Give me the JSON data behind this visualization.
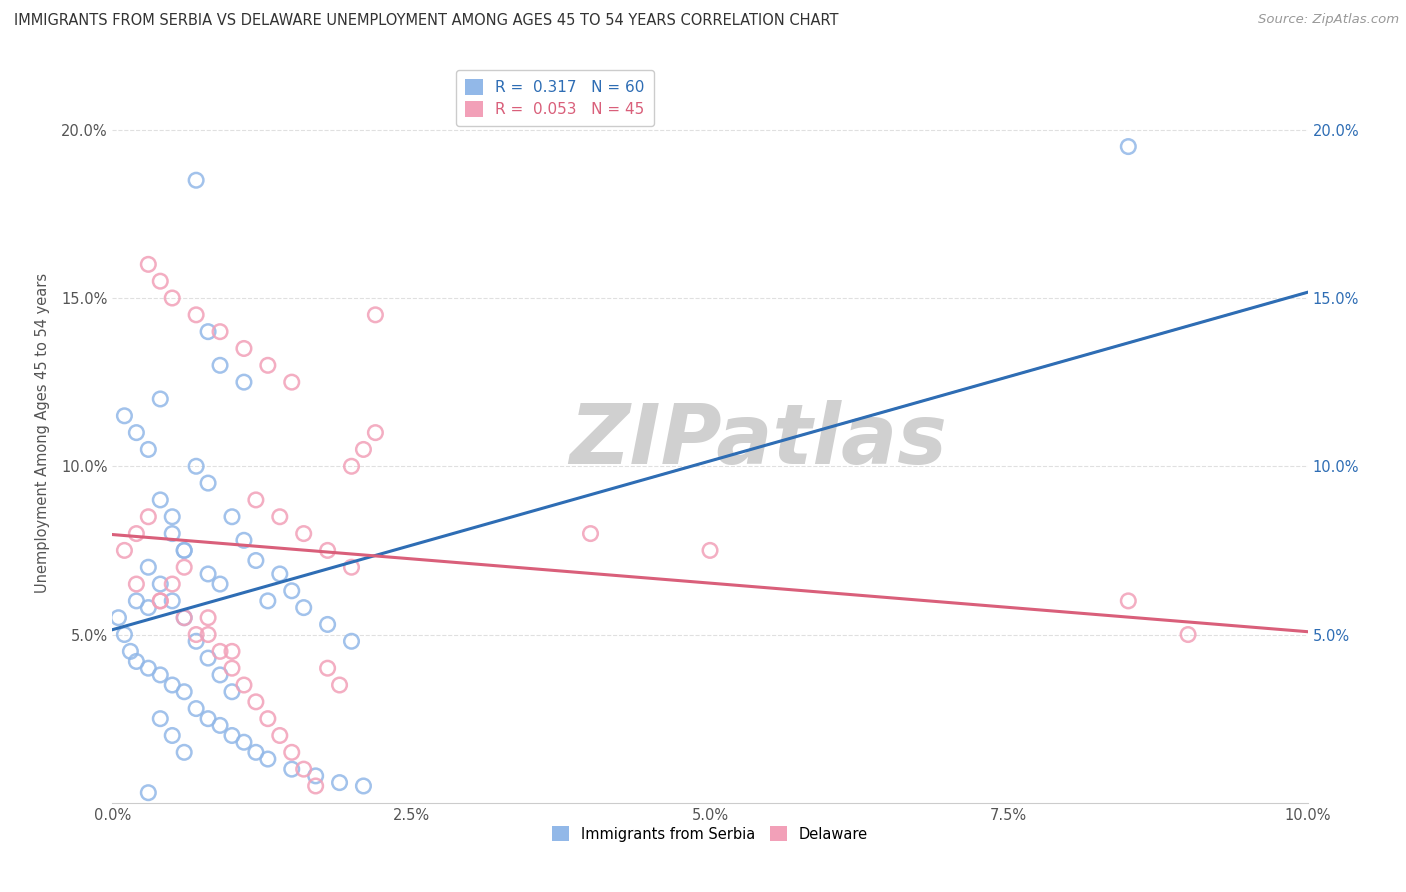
{
  "title": "IMMIGRANTS FROM SERBIA VS DELAWARE UNEMPLOYMENT AMONG AGES 45 TO 54 YEARS CORRELATION CHART",
  "source": "Source: ZipAtlas.com",
  "ylabel": "Unemployment Among Ages 45 to 54 years",
  "xlim": [
    0.0,
    0.1
  ],
  "ylim": [
    0.0,
    0.22
  ],
  "xtick_labels": [
    "0.0%",
    "2.5%",
    "5.0%",
    "7.5%",
    "10.0%"
  ],
  "xtick_vals": [
    0.0,
    0.025,
    0.05,
    0.075,
    0.1
  ],
  "ytick_labels": [
    "",
    "5.0%",
    "10.0%",
    "15.0%",
    "20.0%"
  ],
  "ytick_vals": [
    0.0,
    0.05,
    0.1,
    0.15,
    0.2
  ],
  "r1_val": "0.317",
  "r1_n": "60",
  "r2_val": "0.053",
  "r2_n": "45",
  "blue_scatter_color": "#92b8e8",
  "pink_scatter_color": "#f2a0b8",
  "blue_line_color": "#2e6db4",
  "pink_line_color": "#d95f7a",
  "dash_line_color": "#bbbbbb",
  "watermark_color": "#d0d0d0",
  "grid_color": "#e0e0e0",
  "title_color": "#333333",
  "source_color": "#999999",
  "right_axis_color": "#2e6db4",
  "legend_label1": "Immigrants from Serbia",
  "legend_label2": "Delaware",
  "serbia_x": [
    0.0005,
    0.001,
    0.0015,
    0.002,
    0.002,
    0.003,
    0.003,
    0.003,
    0.004,
    0.004,
    0.004,
    0.005,
    0.005,
    0.005,
    0.006,
    0.006,
    0.006,
    0.007,
    0.007,
    0.008,
    0.008,
    0.008,
    0.009,
    0.009,
    0.01,
    0.01,
    0.011,
    0.011,
    0.012,
    0.012,
    0.013,
    0.014,
    0.015,
    0.015,
    0.016,
    0.017,
    0.018,
    0.019,
    0.02,
    0.021,
    0.001,
    0.002,
    0.003,
    0.004,
    0.005,
    0.006,
    0.007,
    0.008,
    0.009,
    0.01,
    0.003,
    0.004,
    0.005,
    0.006,
    0.007,
    0.008,
    0.009,
    0.011,
    0.013,
    0.085
  ],
  "serbia_y": [
    0.055,
    0.05,
    0.045,
    0.042,
    0.06,
    0.04,
    0.058,
    0.07,
    0.038,
    0.065,
    0.09,
    0.035,
    0.06,
    0.085,
    0.033,
    0.055,
    0.075,
    0.028,
    0.1,
    0.025,
    0.068,
    0.095,
    0.023,
    0.065,
    0.02,
    0.085,
    0.018,
    0.078,
    0.015,
    0.072,
    0.013,
    0.068,
    0.01,
    0.063,
    0.058,
    0.008,
    0.053,
    0.006,
    0.048,
    0.005,
    0.115,
    0.11,
    0.105,
    0.12,
    0.08,
    0.075,
    0.048,
    0.043,
    0.038,
    0.033,
    0.003,
    0.025,
    0.02,
    0.015,
    0.185,
    0.14,
    0.13,
    0.125,
    0.06,
    0.195
  ],
  "delaware_x": [
    0.001,
    0.002,
    0.003,
    0.004,
    0.004,
    0.005,
    0.006,
    0.007,
    0.008,
    0.009,
    0.01,
    0.011,
    0.012,
    0.013,
    0.014,
    0.015,
    0.016,
    0.017,
    0.018,
    0.019,
    0.02,
    0.021,
    0.022,
    0.003,
    0.005,
    0.007,
    0.009,
    0.011,
    0.013,
    0.015,
    0.002,
    0.004,
    0.006,
    0.008,
    0.01,
    0.012,
    0.014,
    0.016,
    0.018,
    0.02,
    0.04,
    0.05,
    0.085,
    0.09,
    0.022
  ],
  "delaware_y": [
    0.075,
    0.08,
    0.085,
    0.06,
    0.155,
    0.065,
    0.07,
    0.05,
    0.055,
    0.045,
    0.04,
    0.035,
    0.03,
    0.025,
    0.02,
    0.015,
    0.01,
    0.005,
    0.04,
    0.035,
    0.1,
    0.105,
    0.11,
    0.16,
    0.15,
    0.145,
    0.14,
    0.135,
    0.13,
    0.125,
    0.065,
    0.06,
    0.055,
    0.05,
    0.045,
    0.09,
    0.085,
    0.08,
    0.075,
    0.07,
    0.08,
    0.075,
    0.06,
    0.05,
    0.145
  ]
}
